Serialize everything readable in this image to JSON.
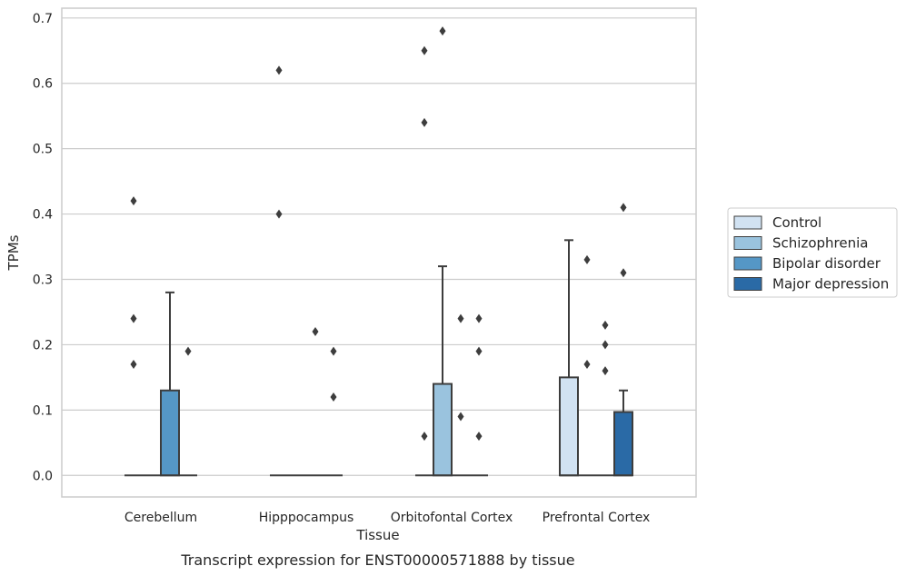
{
  "chart_data": {
    "type": "box",
    "caption": "Transcript expression for ENST00000571888 by tissue",
    "xlabel": "Tissue",
    "ylabel": "TPMs",
    "ylim": [
      -0.033,
      0.715
    ],
    "yticks": [
      0.0,
      0.1,
      0.2,
      0.3,
      0.4,
      0.5,
      0.6,
      0.7
    ],
    "ytick_labels": [
      "0.0",
      "0.1",
      "0.2",
      "0.3",
      "0.4",
      "0.5",
      "0.6",
      "0.7"
    ],
    "categories": [
      "Cerebellum",
      "Hipppocampus",
      "Orbitofontal Cortex",
      "Prefrontal Cortex"
    ],
    "grid": true,
    "legend_position": "right",
    "series": [
      {
        "name": "Control",
        "color": "#d1e2f2",
        "boxes": [
          {
            "category": "Cerebellum",
            "q1": 0.0,
            "median": 0.0,
            "q3": 0.0,
            "whisker_low": 0.0,
            "whisker_high": 0.0,
            "outliers": [
              0.17,
              0.24,
              0.42
            ]
          },
          {
            "category": "Hipppocampus",
            "q1": 0.0,
            "median": 0.0,
            "q3": 0.0,
            "whisker_low": 0.0,
            "whisker_high": 0.0,
            "outliers": [
              0.4,
              0.62
            ]
          },
          {
            "category": "Orbitofontal Cortex",
            "q1": 0.0,
            "median": 0.0,
            "q3": 0.0,
            "whisker_low": 0.0,
            "whisker_high": 0.0,
            "outliers": [
              0.06,
              0.54,
              0.65
            ]
          },
          {
            "category": "Prefrontal Cortex",
            "q1": 0.0,
            "median": 0.0,
            "q3": 0.15,
            "whisker_low": 0.0,
            "whisker_high": 0.36,
            "outliers": []
          }
        ]
      },
      {
        "name": "Schizophrenia",
        "color": "#9ac3de",
        "boxes": [
          {
            "category": "Cerebellum",
            "q1": 0.0,
            "median": 0.0,
            "q3": 0.0,
            "whisker_low": 0.0,
            "whisker_high": 0.0,
            "outliers": []
          },
          {
            "category": "Hipppocampus",
            "q1": 0.0,
            "median": 0.0,
            "q3": 0.0,
            "whisker_low": 0.0,
            "whisker_high": 0.0,
            "outliers": []
          },
          {
            "category": "Orbitofontal Cortex",
            "q1": 0.0,
            "median": 0.0,
            "q3": 0.14,
            "whisker_low": 0.0,
            "whisker_high": 0.32,
            "outliers": [
              0.68
            ]
          },
          {
            "category": "Prefrontal Cortex",
            "q1": 0.0,
            "median": 0.0,
            "q3": 0.0,
            "whisker_low": 0.0,
            "whisker_high": 0.0,
            "outliers": [
              0.17,
              0.33
            ]
          }
        ]
      },
      {
        "name": "Bipolar disorder",
        "color": "#5597c6",
        "boxes": [
          {
            "category": "Cerebellum",
            "q1": 0.0,
            "median": 0.0,
            "q3": 0.13,
            "whisker_low": 0.0,
            "whisker_high": 0.28,
            "outliers": []
          },
          {
            "category": "Hipppocampus",
            "q1": 0.0,
            "median": 0.0,
            "q3": 0.0,
            "whisker_low": 0.0,
            "whisker_high": 0.0,
            "outliers": [
              0.22
            ]
          },
          {
            "category": "Orbitofontal Cortex",
            "q1": 0.0,
            "median": 0.0,
            "q3": 0.0,
            "whisker_low": 0.0,
            "whisker_high": 0.0,
            "outliers": [
              0.09,
              0.24
            ]
          },
          {
            "category": "Prefrontal Cortex",
            "q1": 0.0,
            "median": 0.0,
            "q3": 0.0,
            "whisker_low": 0.0,
            "whisker_high": 0.0,
            "outliers": [
              0.16,
              0.2,
              0.23
            ]
          }
        ]
      },
      {
        "name": "Major depression",
        "color": "#2a6aa6",
        "boxes": [
          {
            "category": "Cerebellum",
            "q1": 0.0,
            "median": 0.0,
            "q3": 0.0,
            "whisker_low": 0.0,
            "whisker_high": 0.0,
            "outliers": [
              0.19
            ]
          },
          {
            "category": "Hipppocampus",
            "q1": 0.0,
            "median": 0.0,
            "q3": 0.0,
            "whisker_low": 0.0,
            "whisker_high": 0.0,
            "outliers": [
              0.12,
              0.19
            ]
          },
          {
            "category": "Orbitofontal Cortex",
            "q1": 0.0,
            "median": 0.0,
            "q3": 0.0,
            "whisker_low": 0.0,
            "whisker_high": 0.0,
            "outliers": [
              0.06,
              0.19,
              0.24
            ]
          },
          {
            "category": "Prefrontal Cortex",
            "q1": 0.0,
            "median": 0.0,
            "q3": 0.097,
            "whisker_low": 0.0,
            "whisker_high": 0.13,
            "outliers": [
              0.31,
              0.41
            ]
          }
        ]
      }
    ]
  },
  "colors": {
    "grid": "#cccccc",
    "frame": "#cccccc",
    "line": "#3d3d3d",
    "outlier": "#3d3d3d",
    "background": "#ffffff"
  }
}
